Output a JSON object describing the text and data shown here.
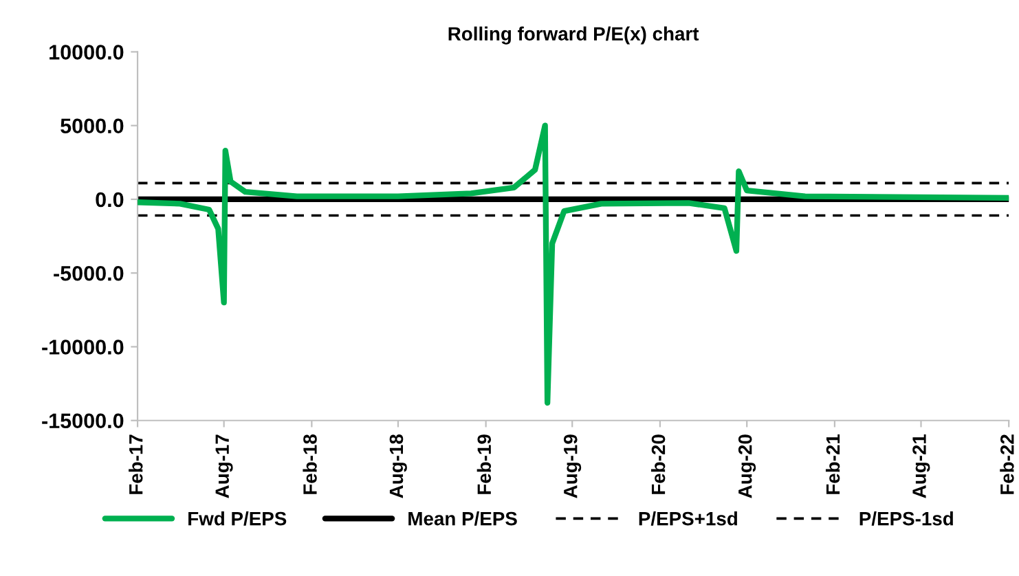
{
  "chart_data": {
    "type": "line",
    "title": "Rolling forward P/E(x) chart",
    "series": [
      {
        "name": "Fwd P/EPS",
        "color": "#00b050",
        "x": [
          "2017-02-01",
          "2017-05-01",
          "2017-07-01",
          "2017-07-20",
          "2017-08-01",
          "2017-08-04",
          "2017-08-15",
          "2017-09-15",
          "2018-01-01",
          "2018-08-01",
          "2019-01-01",
          "2019-04-01",
          "2019-05-15",
          "2019-06-05",
          "2019-06-10",
          "2019-06-20",
          "2019-07-15",
          "2019-10-01",
          "2020-04-01",
          "2020-06-15",
          "2020-07-10",
          "2020-07-15",
          "2020-08-01",
          "2020-12-01",
          "2022-02-01"
        ],
        "values": [
          -200,
          -300,
          -700,
          -2000,
          -7000,
          3300,
          1200,
          500,
          200,
          200,
          400,
          800,
          2000,
          5000,
          -13800,
          -3000,
          -800,
          -300,
          -250,
          -600,
          -3500,
          1900,
          600,
          200,
          100
        ]
      },
      {
        "name": "Mean P/EPS",
        "color": "#000000",
        "x": [
          "2017-02-01",
          "2022-02-01"
        ],
        "values": [
          0,
          0
        ]
      },
      {
        "name": "P/EPS+1sd",
        "color": "#000000",
        "line_style": "dashed",
        "x": [
          "2017-02-01",
          "2022-02-01"
        ],
        "values": [
          1100,
          1100
        ]
      },
      {
        "name": "P/EPS-1sd",
        "color": "#000000",
        "line_style": "dashed",
        "x": [
          "2017-02-01",
          "2022-02-01"
        ],
        "values": [
          -1100,
          -1100
        ]
      }
    ],
    "xlim": [
      "2017-02-01",
      "2022-02-01"
    ],
    "xticks": [
      {
        "value": "2017-02-01",
        "label": "Feb-17"
      },
      {
        "value": "2017-08-01",
        "label": "Aug-17"
      },
      {
        "value": "2018-02-01",
        "label": "Feb-18"
      },
      {
        "value": "2018-08-01",
        "label": "Aug-18"
      },
      {
        "value": "2019-02-01",
        "label": "Feb-19"
      },
      {
        "value": "2019-08-01",
        "label": "Aug-19"
      },
      {
        "value": "2020-02-01",
        "label": "Feb-20"
      },
      {
        "value": "2020-08-01",
        "label": "Aug-20"
      },
      {
        "value": "2021-02-01",
        "label": "Feb-21"
      },
      {
        "value": "2021-08-01",
        "label": "Aug-21"
      },
      {
        "value": "2022-02-01",
        "label": "Feb-22"
      }
    ],
    "ylim": [
      -15000,
      10000
    ],
    "yticks": [
      {
        "value": -15000,
        "label": "-15000.0"
      },
      {
        "value": -10000,
        "label": "-10000.0"
      },
      {
        "value": -5000,
        "label": "-5000.0"
      },
      {
        "value": 0,
        "label": "0.0"
      },
      {
        "value": 5000,
        "label": "5000.0"
      },
      {
        "value": 10000,
        "label": "10000.0"
      }
    ],
    "grid": false,
    "legend": "bottom",
    "marker": "none",
    "line_style": "solid"
  }
}
